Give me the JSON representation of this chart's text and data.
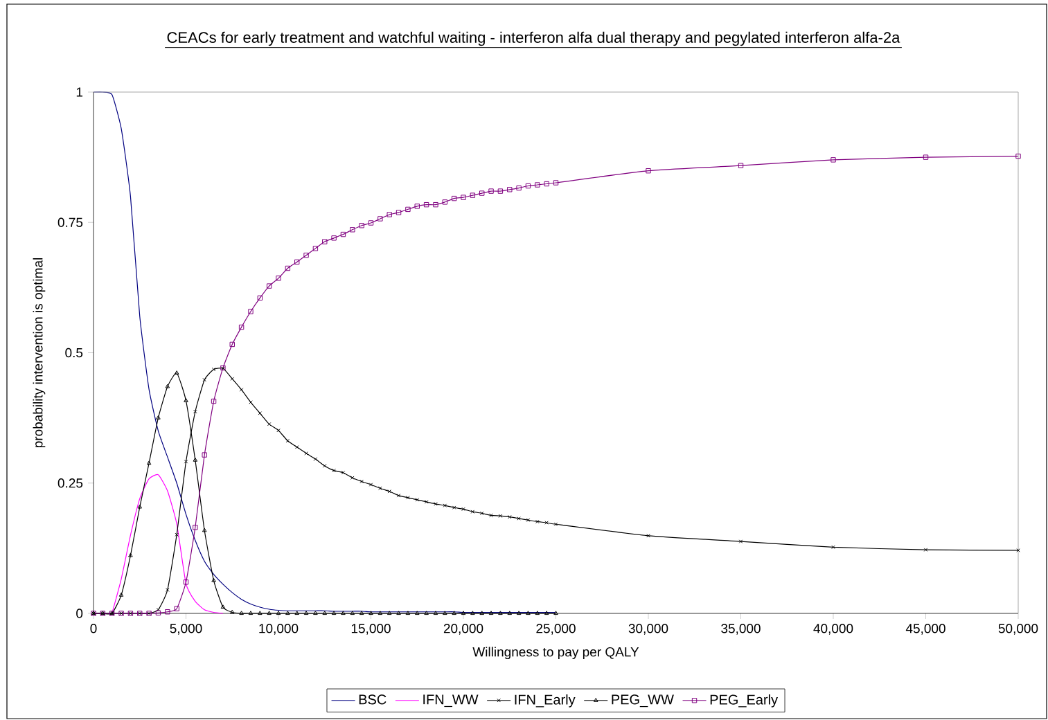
{
  "chart_data": {
    "type": "line",
    "title": "CEACs for early treatment and watchful waiting - interferon alfa dual therapy and pegylated interferon alfa-2a",
    "xlabel": "Willingness to pay per QALY",
    "ylabel": "probability intervention is optimal",
    "x": [
      0,
      500,
      1000,
      1500,
      2000,
      2500,
      3000,
      3500,
      4000,
      4500,
      5000,
      5500,
      6000,
      6500,
      7000,
      7500,
      8000,
      8500,
      9000,
      9500,
      10000,
      10500,
      11000,
      11500,
      12000,
      12500,
      13000,
      13500,
      14000,
      14500,
      15000,
      15500,
      16000,
      16500,
      17000,
      17500,
      18000,
      18500,
      19000,
      19500,
      20000,
      20500,
      21000,
      21500,
      22000,
      22500,
      23000,
      23500,
      24000,
      24500,
      25000,
      30000,
      35000,
      40000,
      45000,
      50000
    ],
    "series": [
      {
        "name": "BSC",
        "color": "#000080",
        "marker": "none",
        "values": [
          1,
          1,
          0.995,
          0.93,
          0.8,
          0.57,
          0.43,
          0.35,
          0.3,
          0.25,
          0.19,
          0.14,
          0.1,
          0.075,
          0.056,
          0.04,
          0.027,
          0.018,
          0.012,
          0.008,
          0.006,
          0.005,
          0.005,
          0.005,
          0.005,
          0.005,
          0.004,
          0.004,
          0.004,
          0.004,
          0.003,
          0.003,
          0.003,
          0.003,
          0.003,
          0.003,
          0.003,
          0.003,
          0.003,
          0.003,
          0.002,
          0.002,
          0.002,
          0.002,
          0.002,
          0.002,
          0.002,
          0.002,
          0.002,
          0.002,
          0.002,
          null,
          null,
          null,
          null,
          null
        ]
      },
      {
        "name": "IFN_WW",
        "color": "#ff00ff",
        "marker": "none",
        "values": [
          null,
          null,
          0,
          0.066,
          0.15,
          0.22,
          0.258,
          0.266,
          0.235,
          0.172,
          0.057,
          0.023,
          0.007,
          0.002,
          0,
          null,
          null,
          null,
          null,
          null,
          null,
          null,
          null,
          null,
          null,
          null,
          null,
          null,
          null,
          null,
          null,
          null,
          null,
          null,
          null,
          null,
          null,
          null,
          null,
          null,
          null,
          null,
          null,
          null,
          null,
          null,
          null,
          null,
          null,
          null,
          null,
          null,
          null,
          null,
          null,
          null
        ]
      },
      {
        "name": "IFN_Early",
        "color": "#000000",
        "marker": "cross",
        "values": [
          0,
          0,
          0,
          0,
          0,
          0,
          0,
          0.007,
          0.045,
          0.151,
          0.291,
          0.387,
          0.448,
          0.468,
          0.47,
          0.45,
          0.429,
          0.405,
          0.384,
          0.363,
          0.351,
          0.331,
          0.319,
          0.307,
          0.296,
          0.283,
          0.274,
          0.27,
          0.26,
          0.253,
          0.247,
          0.24,
          0.234,
          0.226,
          0.222,
          0.218,
          0.214,
          0.21,
          0.207,
          0.203,
          0.2,
          0.195,
          0.192,
          0.188,
          0.187,
          0.185,
          0.182,
          0.179,
          0.176,
          0.174,
          0.171,
          0.149,
          0.138,
          0.127,
          0.122,
          0.121
        ]
      },
      {
        "name": "PEG_WW",
        "color": "#000000",
        "marker": "triangle",
        "values": [
          0,
          0,
          0,
          0.035,
          0.111,
          0.204,
          0.288,
          0.375,
          0.435,
          0.461,
          0.408,
          0.294,
          0.159,
          0.063,
          0.012,
          0.002,
          0,
          0,
          0,
          0,
          0,
          0,
          0,
          0,
          0,
          0,
          0,
          0,
          0,
          0,
          0,
          0,
          0,
          0,
          0,
          0,
          0,
          0,
          0,
          0,
          0,
          0,
          0,
          0,
          0,
          0,
          0,
          0,
          0,
          0,
          0,
          null,
          null,
          null,
          null,
          null
        ]
      },
      {
        "name": "PEG_Early",
        "color": "#800080",
        "marker": "square",
        "values": [
          0,
          0,
          0,
          0,
          0,
          0,
          0,
          0.001,
          0.003,
          0.009,
          0.06,
          0.165,
          0.304,
          0.407,
          0.471,
          0.516,
          0.549,
          0.579,
          0.605,
          0.628,
          0.643,
          0.662,
          0.674,
          0.687,
          0.7,
          0.713,
          0.72,
          0.727,
          0.736,
          0.744,
          0.749,
          0.757,
          0.765,
          0.769,
          0.775,
          0.781,
          0.784,
          0.784,
          0.789,
          0.796,
          0.798,
          0.802,
          0.806,
          0.81,
          0.81,
          0.813,
          0.816,
          0.82,
          0.822,
          0.824,
          0.826,
          0.849,
          0.859,
          0.87,
          0.875,
          0.877
        ]
      }
    ],
    "xlim": [
      0,
      50000
    ],
    "xticks": [
      0,
      {
        "value": 5000,
        "label": "5,000"
      },
      {
        "value": 10000,
        "label": "10,000"
      },
      {
        "value": 15000,
        "label": "15,000"
      },
      {
        "value": 20000,
        "label": "20,000"
      },
      {
        "value": 25000,
        "label": "25,000"
      },
      {
        "value": 30000,
        "label": "30,000"
      },
      {
        "value": 35000,
        "label": "35,000"
      },
      {
        "value": 40000,
        "label": "40,000"
      },
      {
        "value": 45000,
        "label": "45,000"
      },
      {
        "value": 50000,
        "label": "50,000"
      }
    ],
    "ylim": [
      0,
      1
    ],
    "yticks": [
      0,
      0.25,
      0.5,
      0.75,
      1
    ],
    "grid": false,
    "legend": "bottom",
    "line_style": "solid"
  }
}
